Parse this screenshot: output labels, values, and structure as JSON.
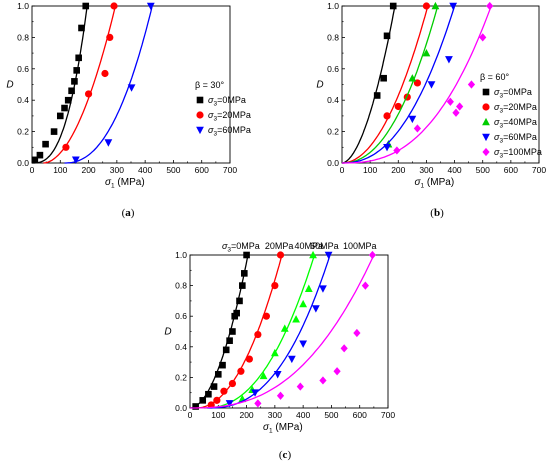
{
  "chart_data": [
    {
      "type": "scatter",
      "panel_label": "(a)",
      "xlabel_sym": "σ",
      "xlabel_sub": "1",
      "xlabel_unit": "(MPa)",
      "ylabel": "D",
      "xlim": [
        0,
        700
      ],
      "ylim": [
        0,
        1.0
      ],
      "xticks": [
        "0",
        "100",
        "200",
        "300",
        "400",
        "500",
        "600",
        "700"
      ],
      "yticks": [
        "0.0",
        "0.2",
        "0.4",
        "0.6",
        "0.8",
        "1.0"
      ],
      "annotation": "β = 30°",
      "legend": {
        "placement": "right"
      },
      "series": [
        {
          "name": "σ3=0MPa",
          "name_sym": "σ",
          "name_sub": "3",
          "name_rest": "=0MPa",
          "marker": "square",
          "color": "#000000",
          "x": [
            10,
            28,
            48,
            78,
            100,
            115,
            128,
            140,
            150,
            158,
            165,
            175,
            190
          ],
          "y": [
            0.02,
            0.05,
            0.12,
            0.2,
            0.3,
            0.35,
            0.4,
            0.46,
            0.52,
            0.59,
            0.67,
            0.86,
            1.0
          ],
          "curve": {
            "x0": 0,
            "x1": 195,
            "k": 2.7
          }
        },
        {
          "name": "σ3=20MPa",
          "name_sym": "σ",
          "name_sub": "3",
          "name_rest": "=20MPa",
          "marker": "circle",
          "color": "#ff0000",
          "x": [
            120,
            200,
            258,
            275,
            290
          ],
          "y": [
            0.1,
            0.44,
            0.57,
            0.8,
            1.0
          ],
          "curve": {
            "x0": 40,
            "x1": 295,
            "k": 1.9
          }
        },
        {
          "name": "σ3=60MPa",
          "name_sym": "σ",
          "name_sub": "3",
          "name_rest": "=60MPa",
          "marker": "triangle-down",
          "color": "#0000ff",
          "x": [
            155,
            270,
            352,
            420
          ],
          "y": [
            0.02,
            0.13,
            0.48,
            1.0
          ],
          "curve": {
            "x0": 115,
            "x1": 425,
            "k": 2.3
          }
        }
      ]
    },
    {
      "type": "scatter",
      "panel_label": "(b)",
      "xlabel_sym": "σ",
      "xlabel_sub": "1",
      "xlabel_unit": "(MPa)",
      "ylabel": "D",
      "xlim": [
        0,
        700
      ],
      "ylim": [
        0,
        1.0
      ],
      "xticks": [
        "0",
        "100",
        "200",
        "300",
        "400",
        "500",
        "600",
        "700"
      ],
      "yticks": [
        "0.0",
        "0.2",
        "0.4",
        "0.6",
        "0.8",
        "1.0"
      ],
      "annotation": "β = 60°",
      "legend": {
        "placement": "right"
      },
      "series": [
        {
          "name": "σ3=0MPa",
          "name_sym": "σ",
          "name_sub": "3",
          "name_rest": "=0MPa",
          "marker": "square",
          "color": "#000000",
          "x": [
            125,
            148,
            160,
            182
          ],
          "y": [
            0.43,
            0.54,
            0.81,
            1.0
          ],
          "curve": {
            "x0": 0,
            "x1": 188,
            "k": 1.8
          }
        },
        {
          "name": "σ3=20MPa",
          "name_sym": "σ",
          "name_sub": "3",
          "name_rest": "=20MPa",
          "marker": "circle",
          "color": "#ff0000",
          "x": [
            160,
            200,
            232,
            268,
            300
          ],
          "y": [
            0.3,
            0.36,
            0.42,
            0.51,
            1.0
          ],
          "curve": {
            "x0": 0,
            "x1": 305,
            "k": 2.0
          }
        },
        {
          "name": "σ3=40MPa",
          "name_sym": "σ",
          "name_sub": "3",
          "name_rest": "=40MPa",
          "marker": "triangle-up",
          "color": "#00cc00",
          "x": [
            165,
            250,
            300,
            332
          ],
          "y": [
            0.12,
            0.54,
            0.7,
            1.0
          ],
          "curve": {
            "x0": 0,
            "x1": 340,
            "k": 2.2
          }
        },
        {
          "name": "σ3=60MPa",
          "name_sym": "σ",
          "name_sub": "3",
          "name_rest": "=60MPa",
          "marker": "triangle-down",
          "color": "#0000ff",
          "x": [
            160,
            250,
            318,
            380,
            395
          ],
          "y": [
            0.1,
            0.28,
            0.5,
            0.66,
            1.0
          ],
          "curve": {
            "x0": 0,
            "x1": 400,
            "k": 2.3
          }
        },
        {
          "name": "σ3=100MPa",
          "name_sym": "σ",
          "name_sub": "3",
          "name_rest": "=100MPa",
          "marker": "diamond",
          "color": "#ff00ff",
          "x": [
            195,
            268,
            385,
            405,
            418,
            460,
            500,
            525
          ],
          "y": [
            0.08,
            0.22,
            0.39,
            0.32,
            0.36,
            0.5,
            0.8,
            1.0
          ],
          "curve": {
            "x0": 0,
            "x1": 530,
            "k": 2.6
          }
        }
      ]
    },
    {
      "type": "scatter",
      "panel_label": "(c)",
      "xlabel_sym": "σ",
      "xlabel_sub": "1",
      "xlabel_unit": "(MPa)",
      "ylabel": "D",
      "xlim": [
        0,
        700
      ],
      "ylim": [
        0,
        1.0
      ],
      "xticks": [
        "0",
        "100",
        "200",
        "300",
        "400",
        "500",
        "600",
        "700"
      ],
      "yticks": [
        "0.0",
        "0.2",
        "0.4",
        "0.6",
        "0.8",
        "1.0"
      ],
      "legend": {
        "placement": "top, labels at curve ends"
      },
      "series": [
        {
          "name": "σ3=0MPa",
          "name_sym": "σ",
          "name_sub": "3",
          "name_rest": "=0MPa",
          "label_x": 205,
          "marker": "square",
          "color": "#000000",
          "x": [
            20,
            45,
            65,
            85,
            100,
            115,
            128,
            140,
            150,
            158,
            165,
            175,
            185,
            192,
            200
          ],
          "y": [
            0.01,
            0.05,
            0.09,
            0.14,
            0.22,
            0.28,
            0.38,
            0.44,
            0.5,
            0.6,
            0.62,
            0.7,
            0.8,
            0.88,
            1.0
          ],
          "curve": {
            "x0": 0,
            "x1": 205,
            "k": 1.9
          }
        },
        {
          "name": "20MPa",
          "label_x": 315,
          "marker": "circle",
          "color": "#ff0000",
          "x": [
            75,
            95,
            120,
            150,
            180,
            210,
            240,
            270,
            300,
            320
          ],
          "y": [
            0.02,
            0.05,
            0.11,
            0.16,
            0.24,
            0.32,
            0.48,
            0.6,
            0.8,
            1.0
          ],
          "curve": {
            "x0": 20,
            "x1": 325,
            "k": 2.1
          }
        },
        {
          "name": "40MPa",
          "label_x": 420,
          "marker": "triangle-up",
          "color": "#00ff00",
          "x": [
            185,
            220,
            260,
            300,
            335,
            375,
            400,
            420,
            435
          ],
          "y": [
            0.06,
            0.12,
            0.21,
            0.36,
            0.52,
            0.58,
            0.68,
            0.78,
            1.0
          ],
          "curve": {
            "x0": 50,
            "x1": 440,
            "k": 2.3
          }
        },
        {
          "name": "60MPa",
          "label_x": 475,
          "marker": "triangle-down",
          "color": "#0000ff",
          "x": [
            140,
            230,
            310,
            360,
            400,
            445,
            470,
            490
          ],
          "y": [
            0.03,
            0.1,
            0.22,
            0.32,
            0.42,
            0.65,
            0.78,
            1.0
          ],
          "curve": {
            "x0": 60,
            "x1": 495,
            "k": 2.5
          }
        },
        {
          "name": "100MPa",
          "label_x": 600,
          "marker": "diamond",
          "color": "#ff00ff",
          "x": [
            240,
            320,
            390,
            470,
            520,
            545,
            590,
            620,
            645
          ],
          "y": [
            0.03,
            0.08,
            0.14,
            0.18,
            0.24,
            0.39,
            0.49,
            0.8,
            1.0
          ],
          "curve": {
            "x0": 0,
            "x1": 650,
            "k": 2.6
          }
        }
      ]
    }
  ]
}
